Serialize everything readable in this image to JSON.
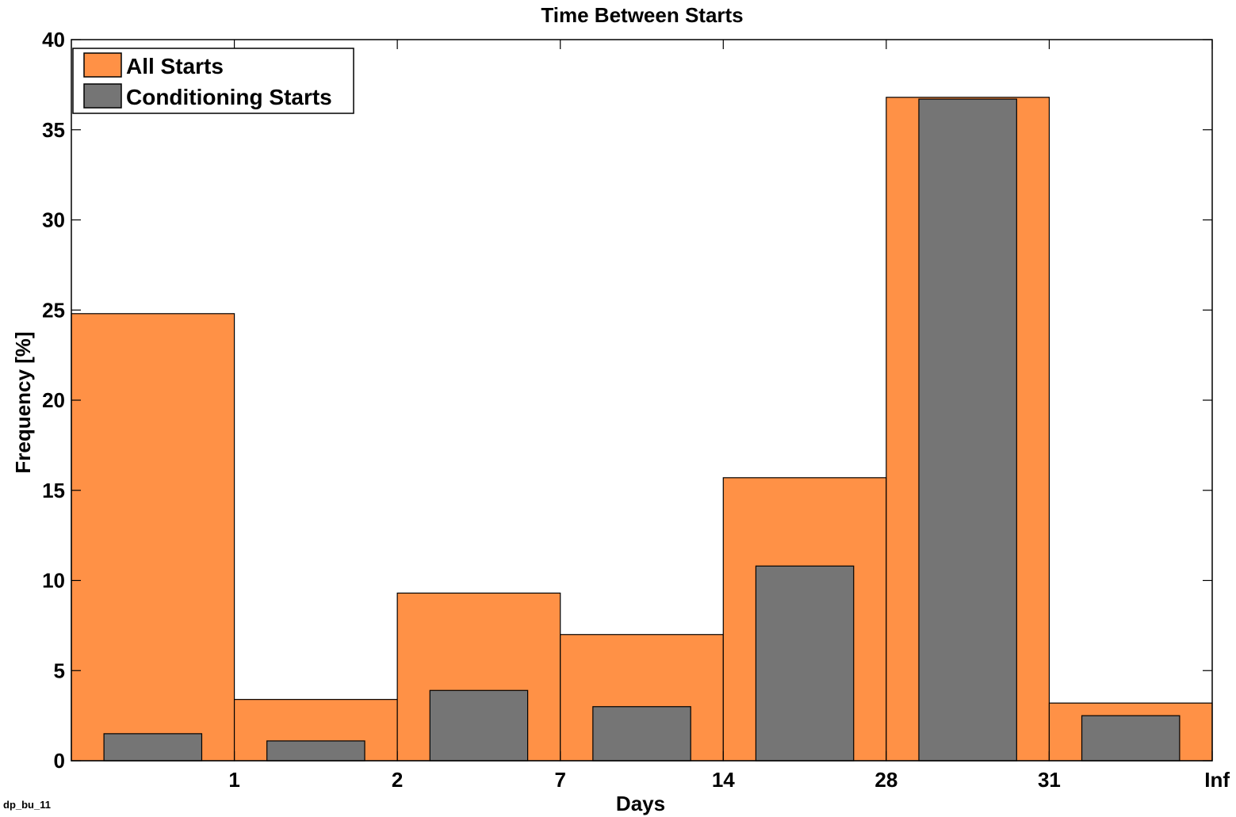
{
  "footer_label": "dp_bu_11",
  "chart_data": {
    "type": "bar",
    "title": "Time Between Starts",
    "xlabel": "Days",
    "ylabel": "Frequency [%]",
    "ylim": [
      0,
      40
    ],
    "yticks": [
      0,
      5,
      10,
      15,
      20,
      25,
      30,
      35,
      40
    ],
    "bin_edge_labels": [
      "1",
      "2",
      "7",
      "14",
      "28",
      "31",
      "Inf"
    ],
    "grid": false,
    "legend_position": "top-left",
    "series": [
      {
        "name": "All Starts",
        "color": "#FF9146",
        "values": [
          24.8,
          3.4,
          9.3,
          7.0,
          15.7,
          36.8,
          3.2
        ]
      },
      {
        "name": "Conditioning Starts",
        "color": "#757575",
        "values": [
          1.5,
          1.1,
          3.9,
          3.0,
          10.8,
          36.7,
          2.5
        ]
      }
    ]
  }
}
